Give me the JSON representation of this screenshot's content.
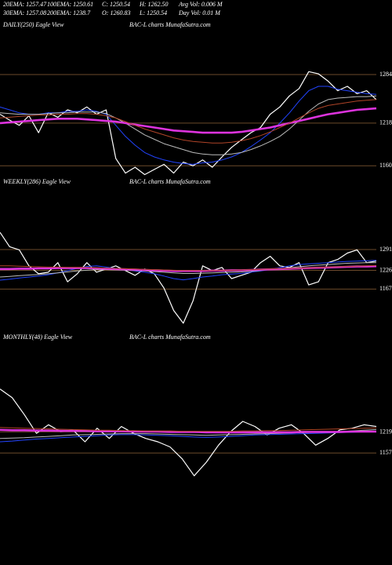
{
  "header": {
    "row1": [
      "20EMA: 1257.47",
      "100EMA: 1250.61",
      "C: 1250.54",
      "H: 1262.50",
      "Avg Vol: 0.006  M"
    ],
    "row2": [
      "30EMA: 1257.08",
      "200EMA: 1238.7",
      "O: 1260.83",
      "L: 1250.54",
      "Day Vol: 0.01  M"
    ]
  },
  "chart_data": [
    {
      "type": "line",
      "title": "DAILY(250) Eagle View",
      "subtitle": "BAC-L charts MunafaSutra.com",
      "ylim": [
        1140,
        1300
      ],
      "yticks": [
        1160,
        1218,
        1284
      ],
      "grid": true,
      "grid_color": "#6b4a2a",
      "series": [
        {
          "color": "#ffffff",
          "values": [
            1230,
            1222,
            1215,
            1228,
            1205,
            1232,
            1226,
            1236,
            1232,
            1240,
            1230,
            1236,
            1170,
            1150,
            1158,
            1148,
            1155,
            1162,
            1150,
            1165,
            1160,
            1168,
            1158,
            1172,
            1185,
            1195,
            1205,
            1212,
            1230,
            1240,
            1255,
            1265,
            1288,
            1285,
            1275,
            1262,
            1268,
            1258,
            1262,
            1250
          ]
        },
        {
          "color": "#2244ff",
          "values": [
            1240,
            1236,
            1232,
            1230,
            1230,
            1232,
            1232,
            1234,
            1234,
            1236,
            1234,
            1230,
            1215,
            1200,
            1188,
            1178,
            1172,
            1168,
            1165,
            1163,
            1162,
            1164,
            1165,
            1168,
            1172,
            1178,
            1186,
            1195,
            1205,
            1218,
            1232,
            1248,
            1262,
            1268,
            1268,
            1264,
            1262,
            1260,
            1258,
            1257
          ]
        },
        {
          "color": "#bbbbbb",
          "values": [
            1232,
            1231,
            1230,
            1230,
            1230,
            1231,
            1232,
            1232,
            1233,
            1233,
            1233,
            1231,
            1225,
            1218,
            1210,
            1202,
            1196,
            1190,
            1186,
            1182,
            1178,
            1176,
            1175,
            1175,
            1176,
            1178,
            1182,
            1187,
            1193,
            1200,
            1210,
            1222,
            1234,
            1244,
            1250,
            1252,
            1253,
            1254,
            1254,
            1255
          ]
        },
        {
          "color": "#dd33dd",
          "values": [
            1218,
            1219,
            1220,
            1221,
            1222,
            1223,
            1224,
            1224,
            1224,
            1223,
            1222,
            1221,
            1220,
            1218,
            1216,
            1214,
            1212,
            1210,
            1208,
            1207,
            1206,
            1205,
            1205,
            1205,
            1205,
            1206,
            1208,
            1210,
            1212,
            1215,
            1218,
            1221,
            1224,
            1227,
            1230,
            1232,
            1234,
            1236,
            1237,
            1238
          ]
        },
        {
          "color": "#b04428",
          "values": [
            1225,
            1226,
            1227,
            1228,
            1229,
            1229,
            1230,
            1230,
            1231,
            1231,
            1230,
            1228,
            1225,
            1220,
            1215,
            1210,
            1206,
            1202,
            1198,
            1195,
            1193,
            1192,
            1191,
            1191,
            1192,
            1194,
            1197,
            1201,
            1206,
            1212,
            1218,
            1225,
            1232,
            1238,
            1242,
            1244,
            1246,
            1248,
            1249,
            1250
          ]
        }
      ]
    },
    {
      "type": "line",
      "title": "WEEKLY(286) Eagle View",
      "subtitle": "BAC-L charts MunafaSutra.com",
      "ylim": [
        1040,
        1360
      ],
      "yticks": [
        1167,
        1226,
        1291
      ],
      "grid": true,
      "grid_color": "#6b4a2a",
      "series": [
        {
          "color": "#ffffff",
          "values": [
            1345,
            1300,
            1290,
            1240,
            1215,
            1220,
            1250,
            1190,
            1215,
            1250,
            1220,
            1230,
            1240,
            1225,
            1210,
            1230,
            1215,
            1170,
            1100,
            1060,
            1130,
            1240,
            1225,
            1235,
            1200,
            1210,
            1220,
            1250,
            1270,
            1240,
            1235,
            1250,
            1180,
            1190,
            1250,
            1260,
            1280,
            1290,
            1250,
            1255
          ]
        },
        {
          "color": "#2244ff",
          "values": [
            1195,
            1198,
            1202,
            1205,
            1208,
            1212,
            1218,
            1225,
            1232,
            1238,
            1240,
            1236,
            1232,
            1228,
            1224,
            1220,
            1215,
            1208,
            1200,
            1196,
            1200,
            1205,
            1208,
            1212,
            1214,
            1216,
            1220,
            1224,
            1228,
            1234,
            1240,
            1244,
            1246,
            1248,
            1250,
            1252,
            1254,
            1255,
            1256,
            1257
          ]
        },
        {
          "color": "#bbbbbb",
          "values": [
            1205,
            1207,
            1209,
            1211,
            1213,
            1215,
            1218,
            1221,
            1224,
            1226,
            1228,
            1228,
            1227,
            1226,
            1225,
            1224,
            1222,
            1220,
            1218,
            1216,
            1216,
            1217,
            1218,
            1219,
            1220,
            1221,
            1223,
            1225,
            1228,
            1231,
            1234,
            1237,
            1240,
            1242,
            1244,
            1246,
            1248,
            1249,
            1250,
            1250
          ]
        },
        {
          "color": "#dd33dd",
          "values": [
            1230,
            1230,
            1231,
            1231,
            1232,
            1232,
            1233,
            1233,
            1233,
            1233,
            1232,
            1231,
            1230,
            1229,
            1228,
            1227,
            1226,
            1225,
            1224,
            1224,
            1224,
            1224,
            1225,
            1225,
            1226,
            1226,
            1227,
            1228,
            1229,
            1230,
            1231,
            1232,
            1233,
            1234,
            1235,
            1236,
            1237,
            1238,
            1238,
            1239
          ]
        },
        {
          "color": "#b04428",
          "values": [
            1240,
            1240,
            1239,
            1238,
            1237,
            1236,
            1236,
            1235,
            1235,
            1235,
            1234,
            1233,
            1232,
            1231,
            1230,
            1229,
            1228,
            1227,
            1226,
            1225,
            1225,
            1225,
            1225,
            1226,
            1226,
            1227,
            1228,
            1229,
            1230,
            1231,
            1232,
            1233,
            1234,
            1235,
            1236,
            1237,
            1238,
            1239,
            1240,
            1241
          ]
        }
      ]
    },
    {
      "type": "line",
      "title": "MONTHLY(48) Eagle View",
      "subtitle": "BAC-L charts MunafaSutra.com",
      "ylim": [
        1070,
        1370
      ],
      "yticks": [
        1157,
        1219
      ],
      "grid": true,
      "grid_color": "#6b4a2a",
      "series": [
        {
          "color": "#ffffff",
          "values": [
            1345,
            1320,
            1270,
            1215,
            1240,
            1220,
            1225,
            1190,
            1230,
            1200,
            1235,
            1215,
            1200,
            1190,
            1175,
            1140,
            1090,
            1130,
            1180,
            1220,
            1250,
            1235,
            1210,
            1230,
            1240,
            1215,
            1180,
            1200,
            1225,
            1230,
            1240,
            1235
          ]
        },
        {
          "color": "#2244ff",
          "values": [
            1190,
            1192,
            1195,
            1198,
            1200,
            1202,
            1204,
            1206,
            1208,
            1210,
            1211,
            1211,
            1210,
            1209,
            1208,
            1206,
            1204,
            1203,
            1204,
            1206,
            1208,
            1210,
            1211,
            1212,
            1213,
            1214,
            1215,
            1216,
            1217,
            1218,
            1219,
            1220
          ]
        },
        {
          "color": "#bbbbbb",
          "values": [
            1200,
            1201,
            1202,
            1204,
            1206,
            1208,
            1210,
            1211,
            1212,
            1213,
            1214,
            1214,
            1214,
            1213,
            1212,
            1211,
            1210,
            1209,
            1210,
            1211,
            1212,
            1213,
            1214,
            1215,
            1216,
            1217,
            1218,
            1219,
            1220,
            1222,
            1224,
            1226
          ]
        },
        {
          "color": "#dd33dd",
          "values": [
            1225,
            1224,
            1224,
            1223,
            1223,
            1222,
            1222,
            1222,
            1221,
            1221,
            1221,
            1220,
            1220,
            1220,
            1219,
            1219,
            1219,
            1218,
            1218,
            1218,
            1218,
            1218,
            1218,
            1218,
            1218,
            1219,
            1219,
            1219,
            1219,
            1220,
            1220,
            1220
          ]
        },
        {
          "color": "#b04428",
          "values": [
            1232,
            1231,
            1230,
            1229,
            1228,
            1227,
            1226,
            1225,
            1224,
            1224,
            1223,
            1223,
            1222,
            1222,
            1222,
            1221,
            1221,
            1221,
            1221,
            1221,
            1222,
            1222,
            1223,
            1223,
            1224,
            1225,
            1226,
            1227,
            1228,
            1229,
            1230,
            1231
          ]
        }
      ]
    }
  ]
}
